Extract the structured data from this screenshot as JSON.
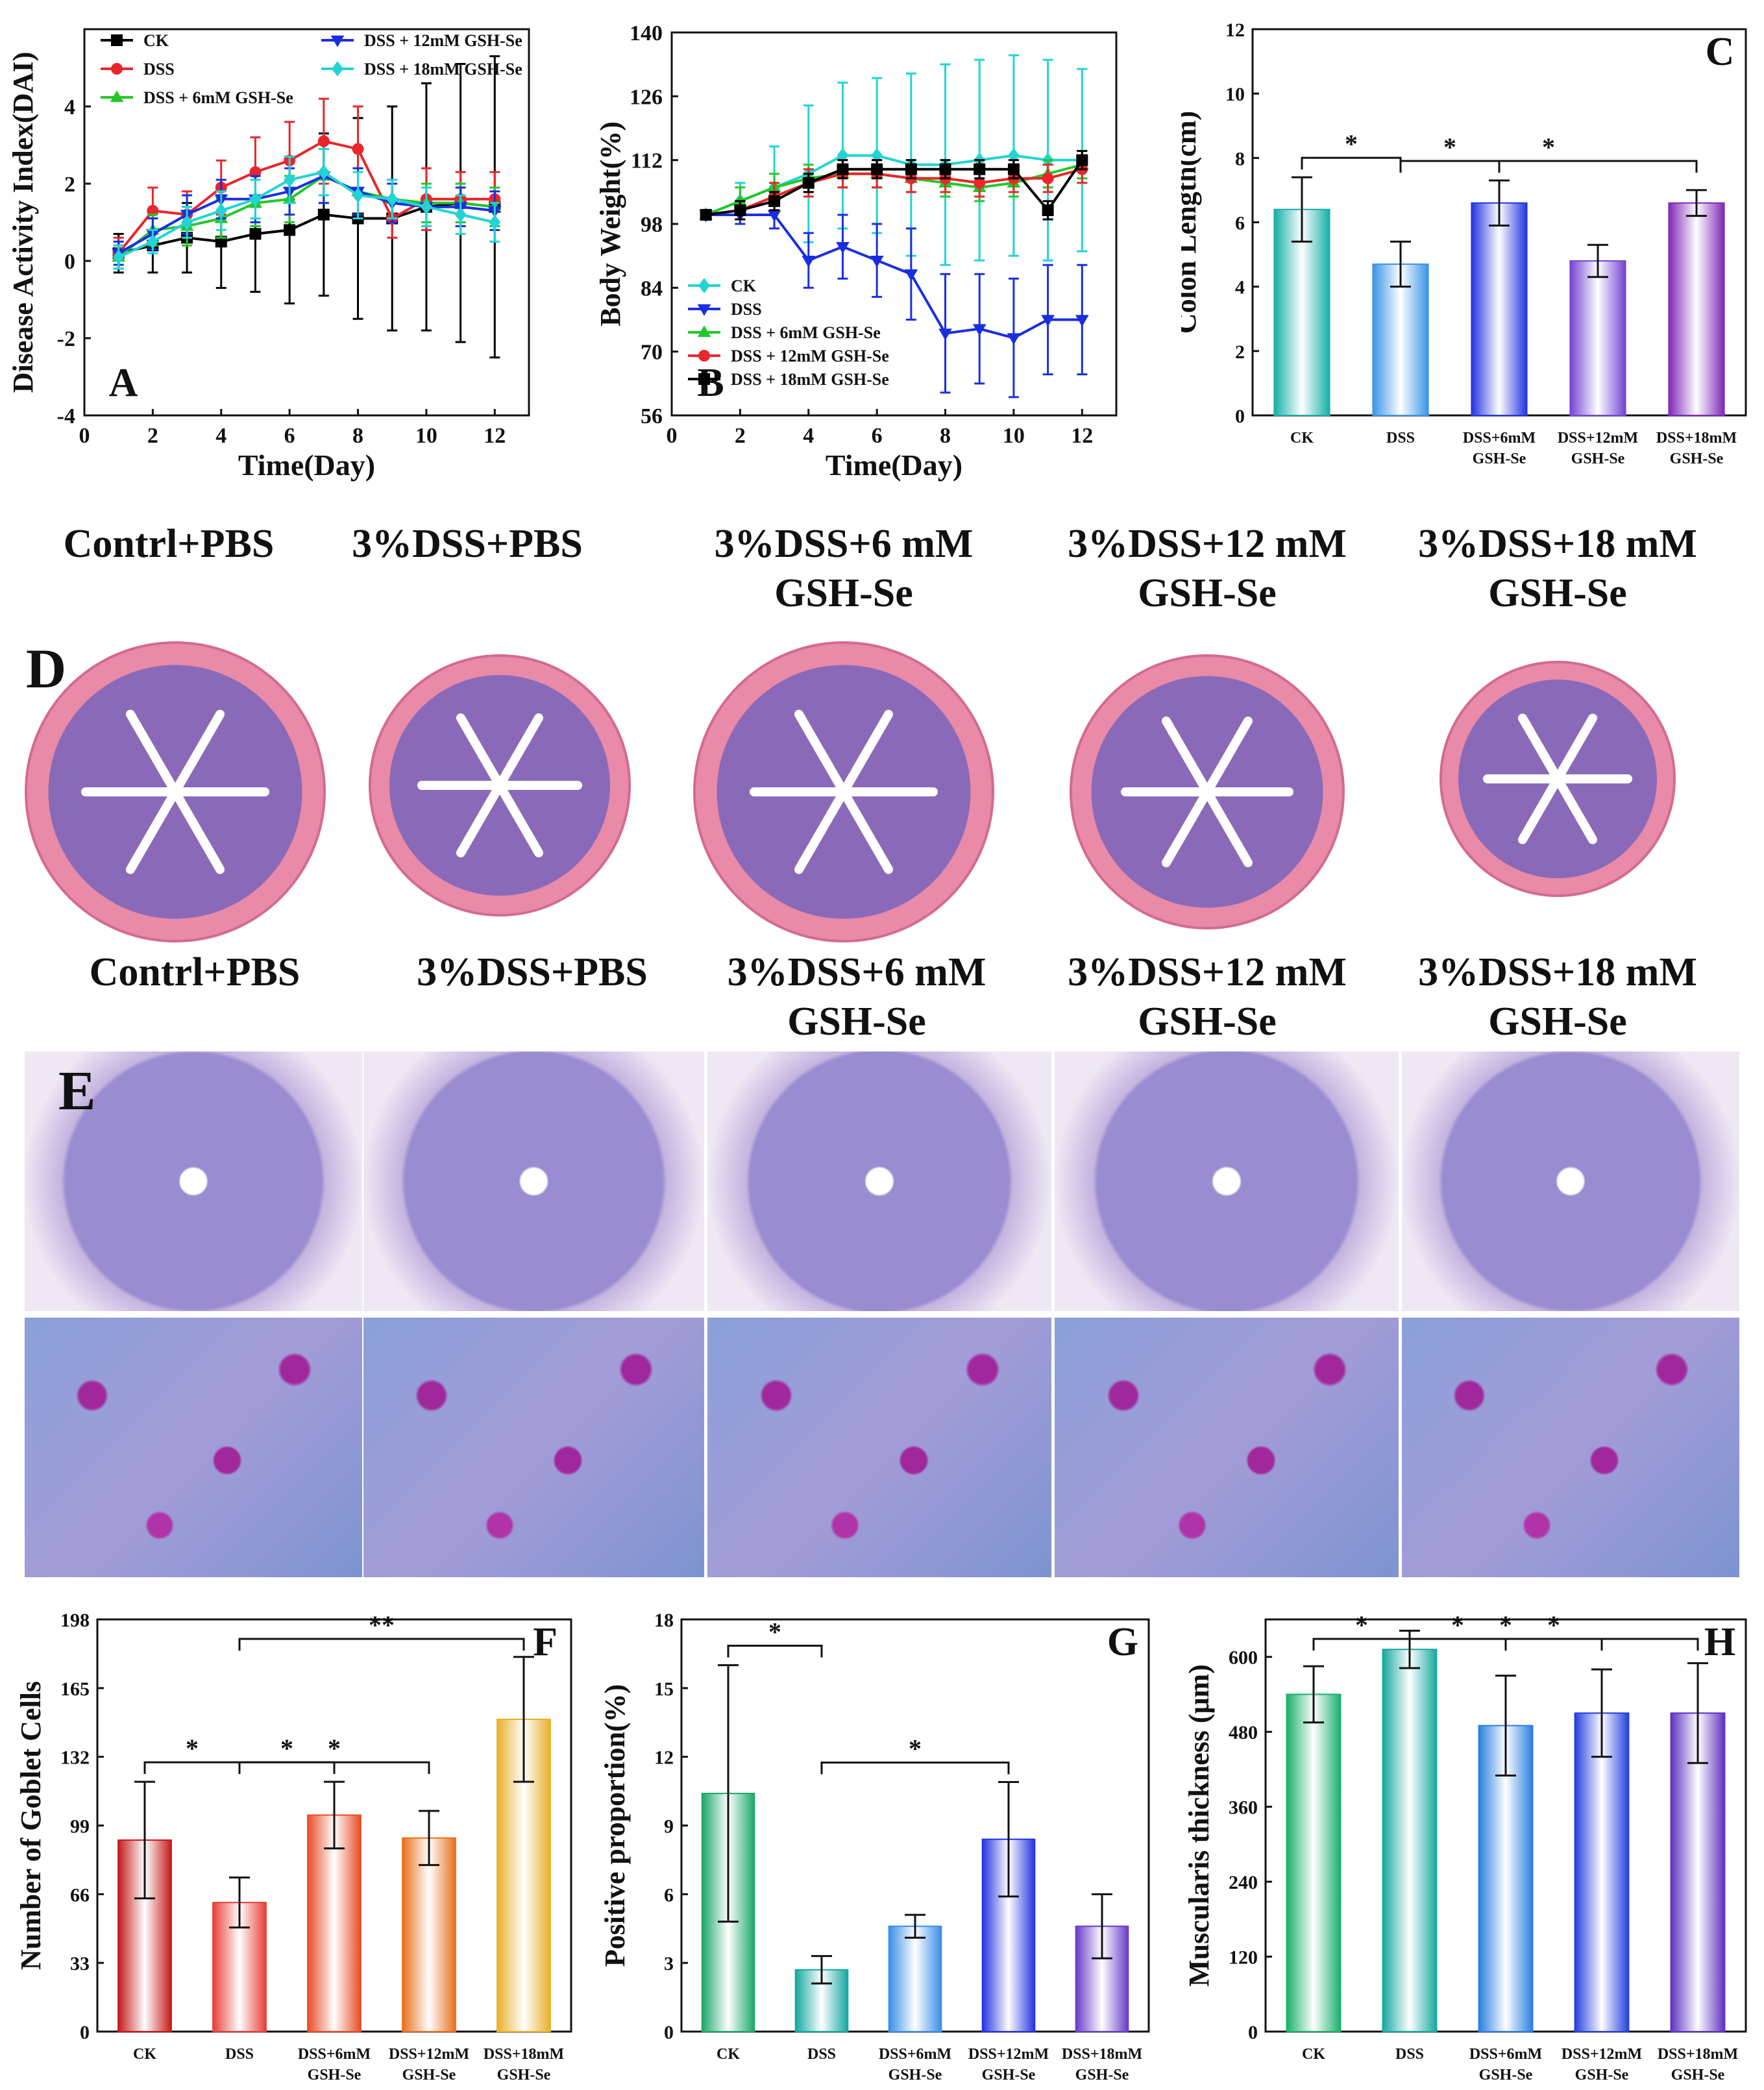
{
  "chart_data": [
    {
      "id": "A",
      "type": "line",
      "xlabel": "Time(Day)",
      "ylabel": "Disease Activity Index(DAI)",
      "xlim": [
        0,
        13
      ],
      "ylim": [
        -4,
        6
      ],
      "xticks": [
        0,
        2,
        4,
        6,
        8,
        10,
        12
      ],
      "yticks": [
        -4,
        -2,
        0,
        2,
        4
      ],
      "x": [
        1,
        2,
        3,
        4,
        5,
        6,
        7,
        8,
        9,
        10,
        11,
        12
      ],
      "series": [
        {
          "name": "CK",
          "color": "#000000",
          "marker": "square",
          "values": [
            0.2,
            0.4,
            0.6,
            0.5,
            0.7,
            0.8,
            1.2,
            1.1,
            1.1,
            1.4,
            1.5,
            1.4
          ],
          "errors": [
            0.5,
            0.7,
            0.9,
            1.2,
            1.5,
            1.9,
            2.1,
            2.6,
            2.9,
            3.2,
            3.6,
            3.9
          ]
        },
        {
          "name": "DSS",
          "color": "#e8262b",
          "marker": "circle",
          "values": [
            0.2,
            1.3,
            1.2,
            1.9,
            2.3,
            2.6,
            3.1,
            2.9,
            1.1,
            1.6,
            1.6,
            1.6
          ],
          "errors": [
            0.4,
            0.6,
            0.6,
            0.7,
            0.9,
            1.0,
            1.1,
            1.1,
            0.5,
            0.8,
            0.7,
            0.7
          ]
        },
        {
          "name": "DSS + 6mM GSH-Se",
          "color": "#22c82a",
          "marker": "triangle",
          "values": [
            0.1,
            0.8,
            0.9,
            1.1,
            1.5,
            1.6,
            2.2,
            1.8,
            1.6,
            1.5,
            1.5,
            1.4
          ],
          "errors": [
            0.3,
            0.4,
            0.5,
            0.5,
            0.6,
            0.6,
            0.7,
            0.6,
            0.5,
            0.5,
            0.5,
            0.5
          ]
        },
        {
          "name": "DSS + 12mM GSH-Se",
          "color": "#1a2ee0",
          "marker": "triangle-down",
          "values": [
            0.2,
            0.7,
            1.2,
            1.6,
            1.6,
            1.8,
            2.2,
            1.8,
            1.5,
            1.4,
            1.4,
            1.3
          ],
          "errors": [
            0.3,
            0.4,
            0.5,
            0.5,
            0.6,
            0.6,
            0.7,
            0.6,
            0.5,
            0.5,
            0.5,
            0.5
          ]
        },
        {
          "name": "DSS + 18mM GSH-Se",
          "color": "#22d4d4",
          "marker": "diamond",
          "values": [
            0.1,
            0.5,
            1.0,
            1.3,
            1.6,
            2.1,
            2.3,
            1.7,
            1.6,
            1.4,
            1.2,
            1.0
          ],
          "errors": [
            0.3,
            0.3,
            0.4,
            0.5,
            0.5,
            0.6,
            0.6,
            0.6,
            0.5,
            0.5,
            0.5,
            0.5
          ]
        }
      ]
    },
    {
      "id": "B",
      "type": "line",
      "xlabel": "Time(Day)",
      "ylabel": "Body Weight(%)",
      "xlim": [
        0,
        13
      ],
      "ylim": [
        56,
        140
      ],
      "xticks": [
        0,
        2,
        4,
        6,
        8,
        10,
        12
      ],
      "yticks": [
        56,
        70,
        84,
        98,
        112,
        126,
        140
      ],
      "x": [
        1,
        2,
        3,
        4,
        5,
        6,
        7,
        8,
        9,
        10,
        11,
        12
      ],
      "series": [
        {
          "name": "CK",
          "color": "#22d4d4",
          "marker": "diamond",
          "values": [
            100,
            103,
            106,
            109,
            113,
            113,
            111,
            111,
            112,
            113,
            112,
            112
          ],
          "errors": [
            1,
            4,
            9,
            15,
            16,
            17,
            20,
            22,
            22,
            22,
            22,
            20
          ]
        },
        {
          "name": "DSS",
          "color": "#1a2ee0",
          "marker": "triangle-down",
          "values": [
            100,
            100,
            100,
            90,
            93,
            90,
            87,
            74,
            75,
            73,
            77,
            77
          ],
          "errors": [
            1,
            2,
            3,
            6,
            7,
            8,
            10,
            13,
            12,
            13,
            12,
            12
          ]
        },
        {
          "name": "DSS + 6mM GSH-Se",
          "color": "#22c82a",
          "marker": "triangle",
          "values": [
            100,
            103,
            106,
            108,
            109,
            109,
            108,
            107,
            106,
            107,
            109,
            111
          ],
          "errors": [
            1,
            3,
            3,
            3,
            3,
            3,
            3,
            3,
            3,
            3,
            3,
            3
          ]
        },
        {
          "name": "DSS + 12mM GSH-Se",
          "color": "#e8262b",
          "marker": "circle",
          "values": [
            100,
            101,
            104,
            107,
            109,
            109,
            108,
            108,
            107,
            108,
            108,
            110
          ],
          "errors": [
            1,
            2,
            3,
            3,
            3,
            3,
            3,
            3,
            3,
            3,
            3,
            3
          ]
        },
        {
          "name": "DSS + 18mM GSH-Se",
          "color": "#000000",
          "marker": "square",
          "values": [
            100,
            101,
            103,
            107,
            110,
            110,
            110,
            110,
            110,
            110,
            101,
            112
          ],
          "errors": [
            1,
            2,
            2,
            2,
            2,
            2,
            2,
            2,
            2,
            2,
            2,
            2
          ]
        }
      ]
    },
    {
      "id": "C",
      "type": "bar",
      "ylabel": "Colon Length(cm)",
      "ylim": [
        0,
        12
      ],
      "yticks": [
        0,
        2,
        4,
        6,
        8,
        10,
        12
      ],
      "categories": [
        [
          "CK"
        ],
        [
          "DSS"
        ],
        [
          "DSS+6mM",
          "GSH-Se"
        ],
        [
          "DSS+12mM",
          "GSH-Se"
        ],
        [
          "DSS+18mM",
          "GSH-Se"
        ]
      ],
      "values": [
        6.4,
        4.7,
        6.6,
        4.8,
        6.6
      ],
      "errors": [
        1.0,
        0.7,
        0.7,
        0.5,
        0.4
      ],
      "colors": [
        "#16b0a8",
        "#3a95e8",
        "#2434e0",
        "#7444d4",
        "#8028b8"
      ],
      "significance": [
        {
          "from": 0,
          "to": 1,
          "label": "*"
        },
        {
          "from": 1,
          "to": 2,
          "label": "*"
        },
        {
          "from": 1,
          "to": 4,
          "label": "*"
        }
      ]
    },
    {
      "id": "F",
      "type": "bar",
      "ylabel": "Number of Goblet Cells",
      "ylim": [
        0,
        198
      ],
      "yticks": [
        0,
        33,
        66,
        99,
        132,
        165,
        198
      ],
      "categories": [
        [
          "CK"
        ],
        [
          "DSS"
        ],
        [
          "DSS+6mM",
          "GSH-Se"
        ],
        [
          "DSS+12mM",
          "GSH-Se"
        ],
        [
          "DSS+18mM",
          "GSH-Se"
        ]
      ],
      "values": [
        92,
        62,
        104,
        93,
        150
      ],
      "errors": [
        28,
        12,
        16,
        13,
        30
      ],
      "colors": [
        "#c41a1a",
        "#e83e36",
        "#e84c26",
        "#e8701c",
        "#e8b02a"
      ],
      "significance": [
        {
          "from": 0,
          "to": 1,
          "label": "*"
        },
        {
          "from": 1,
          "to": 2,
          "label": "*"
        },
        {
          "from": 1,
          "to": 3,
          "label": "*"
        },
        {
          "from": 1,
          "to": 4,
          "label": "**"
        }
      ]
    },
    {
      "id": "G",
      "type": "bar",
      "ylabel": "Positive proportion(%)",
      "ylim": [
        0,
        18
      ],
      "yticks": [
        0,
        3,
        6,
        9,
        12,
        15,
        18
      ],
      "categories": [
        [
          "CK"
        ],
        [
          "DSS"
        ],
        [
          "DSS+6mM",
          "GSH-Se"
        ],
        [
          "DSS+12mM",
          "GSH-Se"
        ],
        [
          "DSS+18mM",
          "GSH-Se"
        ]
      ],
      "values": [
        10.4,
        2.7,
        4.6,
        8.4,
        4.6
      ],
      "errors": [
        5.6,
        0.6,
        0.5,
        2.5,
        1.4
      ],
      "colors": [
        "#1aa86a",
        "#15a8a0",
        "#3a8ee8",
        "#2434e0",
        "#6a3cc8"
      ],
      "significance": [
        {
          "from": 0,
          "to": 1,
          "label": "*"
        },
        {
          "from": 1,
          "to": 3,
          "label": "*"
        }
      ]
    },
    {
      "id": "H",
      "type": "bar",
      "ylabel": "Muscularis thickness (μm)",
      "ylim": [
        0,
        660
      ],
      "yticks": [
        0,
        120,
        240,
        360,
        480,
        600
      ],
      "categories": [
        [
          "CK"
        ],
        [
          "DSS"
        ],
        [
          "DSS+6mM",
          "GSH-Se"
        ],
        [
          "DSS+12mM",
          "GSH-Se"
        ],
        [
          "DSS+18mM",
          "GSH-Se"
        ]
      ],
      "values": [
        540,
        612,
        490,
        510,
        510
      ],
      "errors": [
        45,
        30,
        80,
        70,
        80
      ],
      "colors": [
        "#1ab06a",
        "#18a8a0",
        "#2a7ee0",
        "#2440dc",
        "#6030c0"
      ],
      "significance": [
        {
          "from": 0,
          "to": 1,
          "label": "*"
        },
        {
          "from": 1,
          "to": 2,
          "label": "*"
        },
        {
          "from": 1,
          "to": 3,
          "label": "*"
        },
        {
          "from": 1,
          "to": 4,
          "label": "*"
        }
      ]
    }
  ],
  "histology_D": {
    "letter": "D",
    "titles": [
      [
        "Contrl+PBS"
      ],
      [
        "3%DSS+PBS"
      ],
      [
        "3%DSS+6 mM",
        "GSH-Se"
      ],
      [
        "3%DSS+12 mM",
        "GSH-Se"
      ],
      [
        "3%DSS+18 mM",
        "GSH-Se"
      ]
    ]
  },
  "histology_E": {
    "letter": "E",
    "titles": [
      [
        "Contrl+PBS"
      ],
      [
        "3%DSS+PBS"
      ],
      [
        "3%DSS+6 mM",
        "GSH-Se"
      ],
      [
        "3%DSS+12 mM",
        "GSH-Se"
      ],
      [
        "3%DSS+18 mM",
        "GSH-Se"
      ]
    ]
  }
}
